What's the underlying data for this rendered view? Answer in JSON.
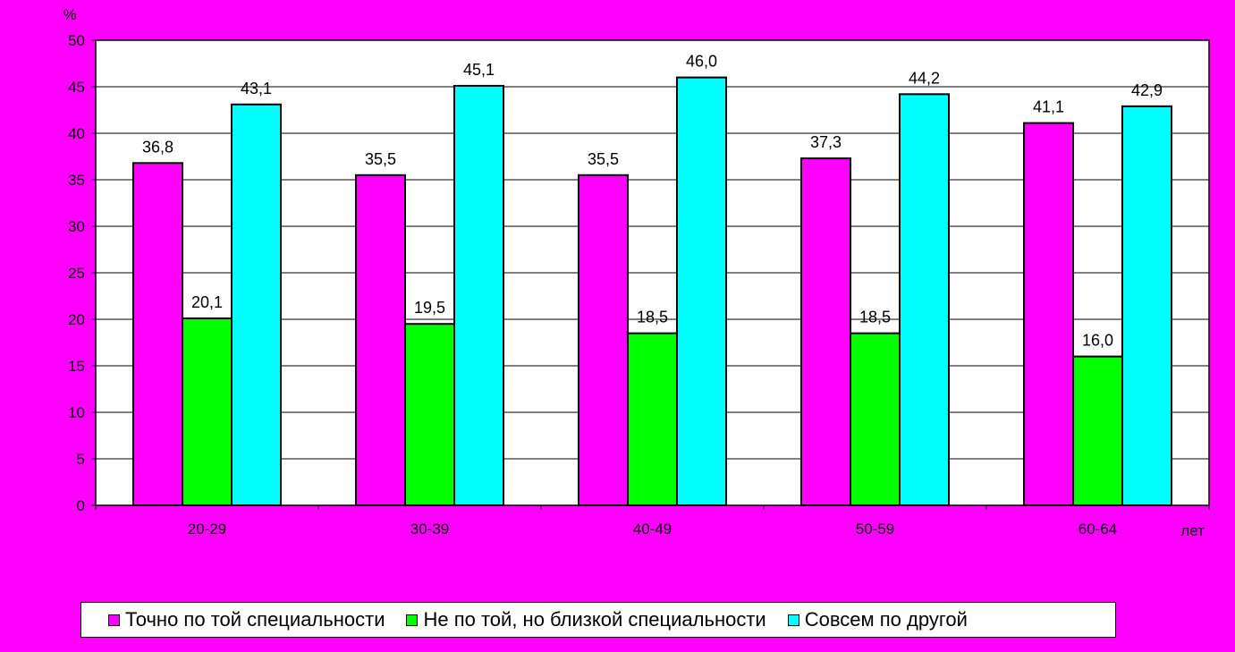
{
  "chart_data": {
    "type": "bar",
    "categories": [
      "20-29",
      "30-39",
      "40-49",
      "50-59",
      "60-64"
    ],
    "series": [
      {
        "name": "Точно по той специальности",
        "color": "#FF00FF",
        "values": [
          36.8,
          35.5,
          35.5,
          37.3,
          41.1
        ],
        "labels": [
          "36,8",
          "35,5",
          "35,5",
          "37,3",
          "41,1"
        ]
      },
      {
        "name": "Не по той, но близкой специальности",
        "color": "#00FF00",
        "values": [
          20.1,
          19.5,
          18.5,
          18.5,
          16.0
        ],
        "labels": [
          "20,1",
          "19,5",
          "18,5",
          "18,5",
          "16,0"
        ]
      },
      {
        "name": "Совсем по другой",
        "color": "#00FFFF",
        "values": [
          43.1,
          45.1,
          46.0,
          44.2,
          42.9
        ],
        "labels": [
          "43,1",
          "45,1",
          "46,0",
          "44,2",
          "42,9"
        ]
      }
    ],
    "ylabel": "%",
    "xlabel": "лет",
    "ylim": [
      0,
      50
    ],
    "yticks": [
      0,
      5,
      10,
      15,
      20,
      25,
      30,
      35,
      40,
      45,
      50
    ],
    "grid": true,
    "plot_background": "#FFFFFF",
    "page_background": "#FF00FF",
    "legend_position": "bottom"
  }
}
